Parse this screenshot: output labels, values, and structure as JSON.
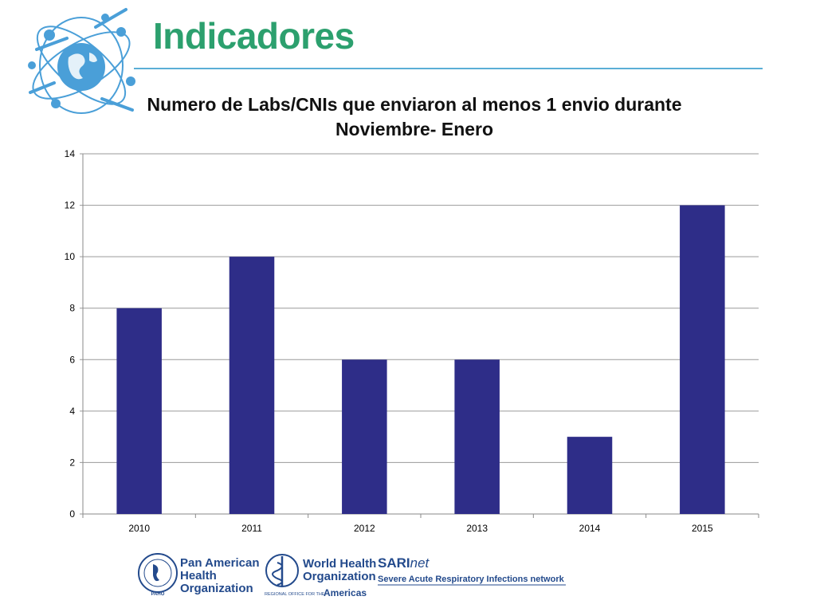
{
  "slide": {
    "title": "Indicadores",
    "colors": {
      "title": "#2ca06e",
      "rule": "#5aaed6",
      "bar": "#2e2d88",
      "logo": "#4a9fd8"
    }
  },
  "chart_data": {
    "type": "bar",
    "title": "Numero de Labs/CNIs que enviaron al menos 1 envio durante Noviembre- Enero",
    "categories": [
      "2010",
      "2011",
      "2012",
      "2013",
      "2014",
      "2015"
    ],
    "values": [
      8,
      10,
      6,
      6,
      3,
      12
    ],
    "ylim": [
      0,
      14
    ],
    "yticks": [
      "0",
      "2",
      "4",
      "6",
      "8",
      "10",
      "12",
      "14"
    ],
    "grid": true,
    "legend": "none"
  },
  "footer": {
    "paho": {
      "line1": "Pan American",
      "line2": "Health",
      "line3": "Organization",
      "seal": "PAHO"
    },
    "who": {
      "line1": "World Health",
      "line2": "Organization",
      "regional": "REGIONAL OFFICE FOR THE",
      "region": "Americas"
    },
    "sarinet": {
      "brand_sari": "SARI",
      "brand_net": "net",
      "tagline": "Severe Acute Respiratory Infections network"
    }
  }
}
